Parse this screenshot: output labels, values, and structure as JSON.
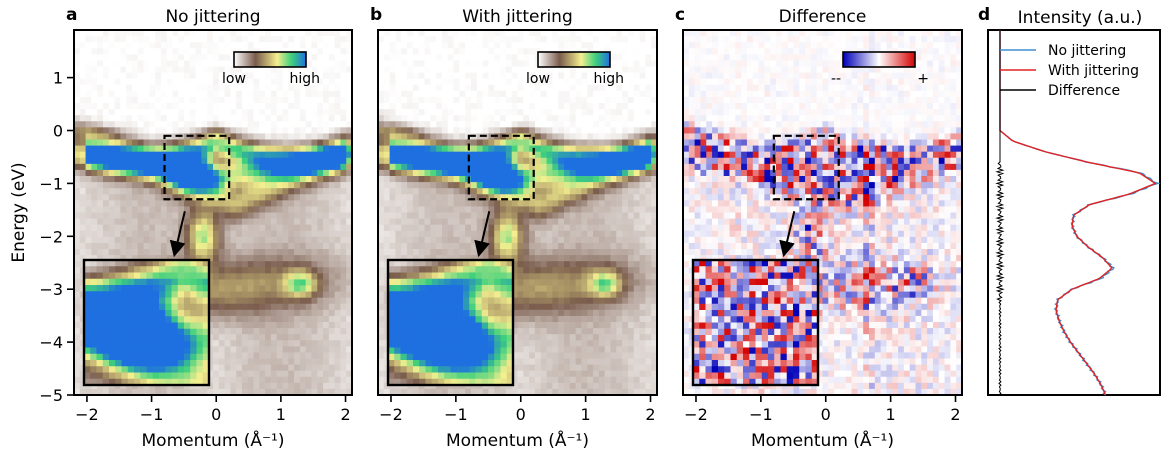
{
  "chart_data": [
    {
      "panel": "a",
      "type": "heatmap",
      "title": "No jittering",
      "xlabel": "Momentum (Å⁻¹)",
      "ylabel": "Energy (eV)",
      "xlim": [
        -2.2,
        2.1
      ],
      "ylim": [
        -5,
        1.9
      ],
      "xticks": [
        "−2",
        "−1",
        "0",
        "1",
        "2"
      ],
      "yticks": [
        "1",
        "0",
        "−1",
        "−2",
        "−3",
        "−4",
        "−5"
      ],
      "colorbar": {
        "low": "low",
        "high": "high",
        "colors": [
          "#ffffff",
          "#7a5c4c",
          "#f4ef8f",
          "#3ed07c",
          "#1e6fe0"
        ]
      },
      "zoom_box": {
        "x": [
          -0.8,
          0.2
        ],
        "y": [
          -1.3,
          -0.1
        ]
      },
      "inset": "magnified view of zoom box"
    },
    {
      "panel": "b",
      "type": "heatmap",
      "title": "With jittering",
      "xlabel": "Momentum (Å⁻¹)",
      "xlim": [
        -2.2,
        2.1
      ],
      "ylim": [
        -5,
        1.9
      ],
      "xticks": [
        "−2",
        "−1",
        "0",
        "1",
        "2"
      ],
      "colorbar": {
        "low": "low",
        "high": "high",
        "colors": [
          "#ffffff",
          "#7a5c4c",
          "#f4ef8f",
          "#3ed07c",
          "#1e6fe0"
        ]
      },
      "zoom_box": {
        "x": [
          -0.8,
          0.2
        ],
        "y": [
          -1.3,
          -0.1
        ]
      },
      "inset": "magnified view of zoom box"
    },
    {
      "panel": "c",
      "type": "heatmap",
      "title": "Difference",
      "xlabel": "Momentum (Å⁻¹)",
      "xlim": [
        -2.2,
        2.1
      ],
      "ylim": [
        -5,
        1.9
      ],
      "xticks": [
        "−2",
        "−1",
        "0",
        "1",
        "2"
      ],
      "colorbar": {
        "low": "--",
        "high": "+",
        "colors": [
          "#0000b8",
          "#ffffff",
          "#d40000"
        ]
      },
      "zoom_box": {
        "x": [
          -0.8,
          0.2
        ],
        "y": [
          -1.3,
          -0.1
        ]
      },
      "inset": "magnified view of zoom box"
    },
    {
      "panel": "d",
      "type": "line",
      "title": "Intensity (a.u.)",
      "ylim": [
        -5,
        1.9
      ],
      "legend_position": "top-right",
      "series": [
        {
          "name": "No jittering",
          "color": "#3f8fd0",
          "y": [
            0.0,
            -0.2,
            -0.4,
            -0.6,
            -0.8,
            -1.0,
            -1.2,
            -1.4,
            -1.6,
            -1.8,
            -2.0,
            -2.2,
            -2.4,
            -2.6,
            -2.8,
            -3.0,
            -3.2,
            -3.4,
            -3.6,
            -3.8,
            -4.0,
            -4.2,
            -4.4,
            -4.6,
            -4.8,
            -5.0
          ],
          "values": [
            0.0,
            0.08,
            0.28,
            0.55,
            0.88,
            0.98,
            0.82,
            0.56,
            0.46,
            0.45,
            0.48,
            0.55,
            0.64,
            0.71,
            0.63,
            0.45,
            0.36,
            0.35,
            0.37,
            0.4,
            0.44,
            0.49,
            0.54,
            0.59,
            0.63,
            0.66
          ]
        },
        {
          "name": "With jittering",
          "color": "#e02424",
          "y": [
            0.0,
            -0.2,
            -0.4,
            -0.6,
            -0.8,
            -1.0,
            -1.2,
            -1.4,
            -1.6,
            -1.8,
            -2.0,
            -2.2,
            -2.4,
            -2.6,
            -2.8,
            -3.0,
            -3.2,
            -3.4,
            -3.6,
            -3.8,
            -4.0,
            -4.2,
            -4.4,
            -4.6,
            -4.8,
            -5.0
          ],
          "values": [
            0.0,
            0.08,
            0.28,
            0.55,
            0.87,
            0.97,
            0.81,
            0.56,
            0.46,
            0.45,
            0.48,
            0.55,
            0.64,
            0.7,
            0.62,
            0.45,
            0.36,
            0.35,
            0.37,
            0.4,
            0.44,
            0.49,
            0.54,
            0.59,
            0.63,
            0.66
          ]
        },
        {
          "name": "Difference",
          "color": "#000000",
          "y": [
            0.0,
            -0.2,
            -0.4,
            -0.6,
            -0.8,
            -1.0,
            -1.2,
            -1.4,
            -1.6,
            -1.8,
            -2.0,
            -2.2,
            -2.4,
            -2.6,
            -2.8,
            -3.0,
            -3.2,
            -3.4,
            -3.6,
            -3.8,
            -4.0,
            -4.2,
            -4.4,
            -4.6,
            -4.8,
            -5.0
          ],
          "values": [
            0.0,
            0.0,
            0.0,
            0.0,
            0.02,
            0.02,
            0.02,
            0.02,
            0.02,
            0.02,
            0.02,
            0.02,
            0.02,
            0.02,
            0.02,
            0.02,
            0.0,
            0.0,
            0.0,
            0.0,
            0.0,
            0.0,
            0.0,
            0.0,
            0.0,
            0.0
          ]
        }
      ]
    }
  ]
}
